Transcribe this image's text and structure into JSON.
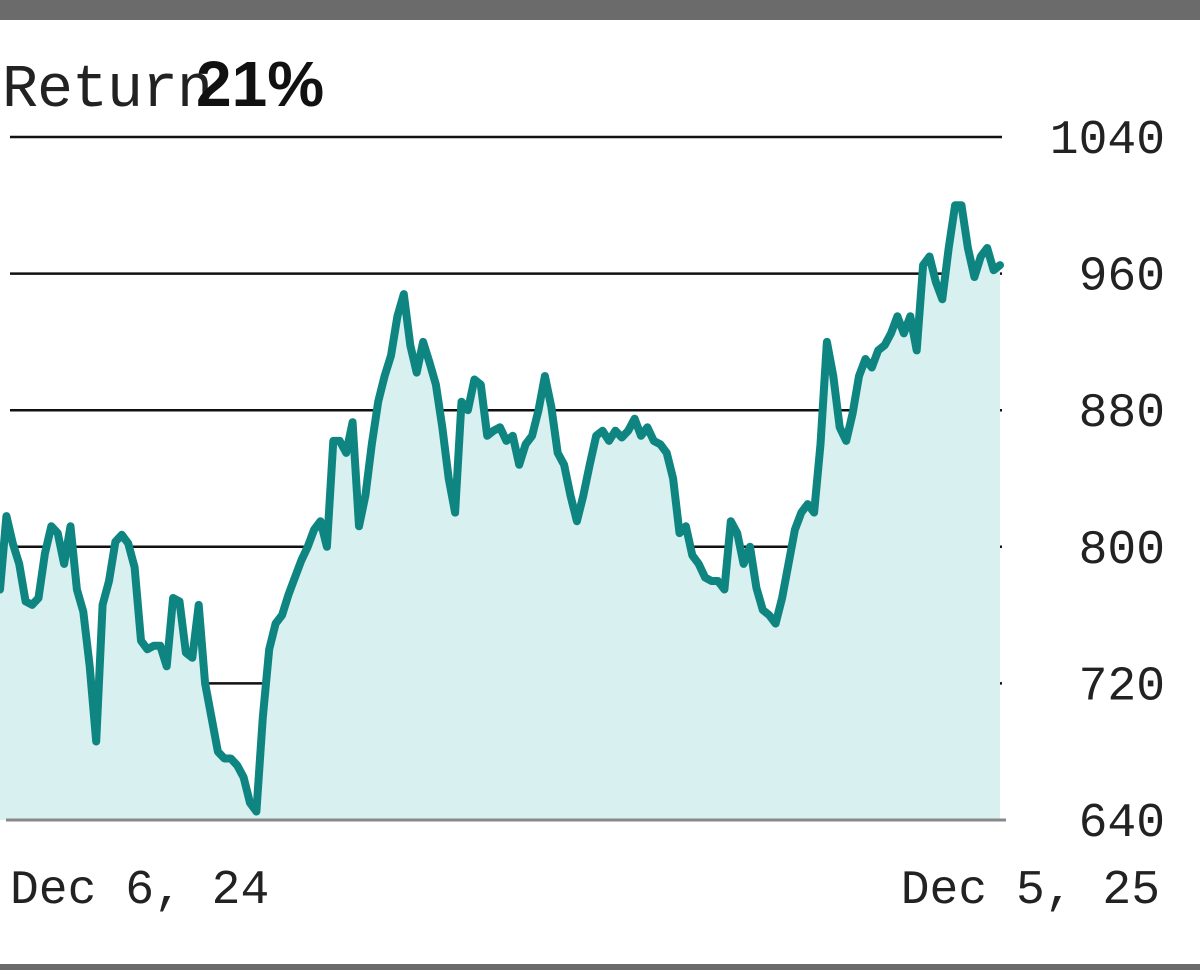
{
  "title": {
    "label": "Return",
    "value": "21%"
  },
  "chart_data": {
    "type": "area",
    "x_start_label": "Dec 6, 24",
    "x_end_label": "Dec 5, 25",
    "y_ticks": [
      640,
      720,
      800,
      880,
      960,
      1040
    ],
    "ylim": [
      640,
      1040
    ],
    "grid": true,
    "line_color": "#0f8582",
    "fill_color": "#d8f0ef",
    "series": [
      {
        "values": [
          775,
          818,
          802,
          790,
          768,
          766,
          770,
          796,
          812,
          808,
          790,
          812,
          775,
          762,
          730,
          686,
          766,
          780,
          803,
          807,
          802,
          788,
          745,
          740,
          742,
          742,
          730,
          770,
          768,
          738,
          735,
          766,
          720,
          700,
          680,
          676,
          676,
          672,
          665,
          650,
          645,
          700,
          740,
          755,
          760,
          772,
          782,
          792,
          800,
          810,
          815,
          800,
          862,
          862,
          855,
          873,
          812,
          830,
          860,
          885,
          900,
          912,
          935,
          948,
          918,
          902,
          920,
          908,
          895,
          870,
          840,
          820,
          885,
          880,
          898,
          895,
          865,
          868,
          870,
          862,
          865,
          848,
          860,
          865,
          880,
          900,
          882,
          855,
          848,
          830,
          815,
          830,
          848,
          865,
          868,
          862,
          868,
          864,
          868,
          875,
          865,
          870,
          862,
          860,
          855,
          840,
          808,
          812,
          795,
          790,
          782,
          780,
          780,
          775,
          815,
          808,
          790,
          800,
          776,
          763,
          760,
          755,
          770,
          790,
          810,
          820,
          825,
          820,
          860,
          920,
          900,
          870,
          862,
          878,
          900,
          910,
          905,
          915,
          918,
          925,
          935,
          925,
          935,
          915,
          965,
          970,
          955,
          945,
          975,
          1000,
          1000,
          975,
          958,
          970,
          975,
          962,
          965
        ]
      }
    ]
  }
}
